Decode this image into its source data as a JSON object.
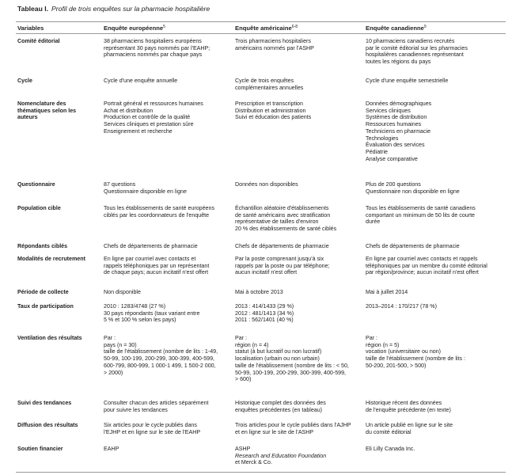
{
  "title": {
    "label": "Tableau I.",
    "text": "Profil de trois enquêtes sur la pharmacie hospitalière"
  },
  "table": {
    "header": [
      {
        "text": "Variables"
      },
      {
        "text": "Enquête européenne",
        "note": "5"
      },
      {
        "text": "Enquête américaine",
        "note": "6-8"
      },
      {
        "text": "Enquête canadienne",
        "note": "9"
      }
    ],
    "rows": [
      [
        [
          "Comité éditorial"
        ],
        [
          "38 pharmaciens hospitaliers européens",
          "représentant 30 pays nommés par l'EAHP;",
          "pharmaciens nommés par chaque pays"
        ],
        [
          "Trois pharmaciens hospitaliers",
          "américains nommés par l'ASHP"
        ],
        [
          "10 pharmaciens canadiens recrutés",
          "par le comité éditorial sur les pharmacies",
          "hospitalières canadiennes représentant",
          "toutes les régions du pays"
        ]
      ],
      [
        [
          "Cycle"
        ],
        [
          "Cycle d'une enquête annuelle"
        ],
        [
          "Cycle de trois enquêtes",
          "complémentaires annuelles"
        ],
        [
          "Cycle d'une enquête semestrielle"
        ]
      ],
      [
        [
          "Nomenclature des",
          "thématiques selon les",
          "auteurs"
        ],
        [
          "Portrait général et ressources humaines",
          "Achat et distribution",
          "Production et contrôle de la qualité",
          "Services cliniques et prestation sûre",
          "Enseignement et recherche"
        ],
        [
          "Prescription et transcription",
          "Distribution et administration",
          "Suivi et éducation des patients"
        ],
        [
          "Données démographiques",
          "Services cliniques",
          "Systèmes de distribution",
          "Ressources humaines",
          "Techniciens en pharmacie",
          "Technologies",
          "Évaluation des services",
          "Pédiatrie",
          "Analyse comparative"
        ]
      ],
      [
        [
          "Questionnaire"
        ],
        [
          "87 questions",
          "Questionnaire disponible en ligne"
        ],
        [
          "Données non disponibles"
        ],
        [
          "Plus de 200 questions",
          "Questionnaire non disponible en ligne"
        ]
      ],
      [
        [
          "Population cible"
        ],
        [
          "Tous les établissements de santé européens",
          "ciblés par les coordonnateurs de l'enquête"
        ],
        [
          "Échantillon aléatoire d'établissements",
          "de santé américains avec stratification",
          "représentative de tailles d'environ",
          "20 % des établissements de santé ciblés"
        ],
        [
          "Tous les établissements de santé canadiens",
          "comportant un minimum de 50 lits de courte",
          "durée"
        ]
      ],
      [
        [
          "Répondants ciblés"
        ],
        [
          "Chefs de départements de pharmacie"
        ],
        [
          "Chefs de départements de pharmacie"
        ],
        [
          "Chefs de départements de pharmacie"
        ]
      ],
      [
        [
          "Modalités de recrutement"
        ],
        [
          "En ligne par courriel avec contacts et",
          "rappels téléphoniques par un représentant",
          "de chaque pays; aucun incitatif n'est offert"
        ],
        [
          "Par la poste comprenant jusqu'à six",
          "rappels par la poste ou par téléphone;",
          "aucun incitatif n'est offert"
        ],
        [
          "En ligne par courriel avec contacts et rappels",
          "téléphoniques par un membre du comité éditorial",
          "par région/province; aucun incitatif n'est offert"
        ]
      ],
      [
        [
          "Période de collecte"
        ],
        [
          "Non disponible"
        ],
        [
          "Mai à octobre 2013"
        ],
        [
          "Mai à juillet 2014"
        ]
      ],
      [
        [
          "Taux de participation"
        ],
        [
          "2010 : 1283/4748 (27 %)",
          "30 pays répondants (taux variant entre",
          "5 % et 100 % selon les pays)"
        ],
        [
          "2013 : 414/1433 (29 %)",
          "2012 : 481/1413 (34 %)",
          "2011 : 562/1401 (40 %)"
        ],
        [
          "2013–2014 : 170/217 (78 %)"
        ]
      ],
      [
        [
          "Ventilation des résultats"
        ],
        [
          "Par :",
          "pays (n = 30)",
          "taille de l'établissement (nombre de lits : 1-49,",
          "50-99, 100-199, 200-299, 300-399, 400-599,",
          "600-799, 800-999, 1 000-1 499, 1 500-2 000,",
          "> 2000)"
        ],
        [
          "Par :",
          "région (n = 4)",
          "statut (à but lucratif ou non lucratif)",
          "localisation (urbain ou non urbain)",
          "taille de l'établissement (nombre de lits : < 50,",
          "50-99, 100-199, 200-299, 300-399, 400-599,",
          "> 600)"
        ],
        [
          "Par :",
          "région (n = 5)",
          "vocation (universitaire ou non)",
          "taille de l'établissement (nombre de lits :",
          "50-200, 201-500, > 500)"
        ]
      ],
      [
        [
          "Suivi des tendances"
        ],
        [
          "Consulter chacun des articles séparément",
          "pour suivre les tendances"
        ],
        [
          "Historique complet des données des",
          "enquêtes précédentes (en tableau)"
        ],
        [
          "Historique récent des données",
          "de l'enquête précédente (en texte)"
        ]
      ],
      [
        [
          "Diffusion des résultats"
        ],
        [
          "Six articles pour le cycle publiés dans",
          "l'EJHP et en ligne sur le site de l'EAHP"
        ],
        [
          "Trois articles pour le cycle publiés dans l'AJHP",
          "et en ligne sur le site de l'ASHP"
        ],
        [
          "Un article publié en ligne sur le site",
          "du comité éditorial"
        ]
      ],
      [
        [
          "Soutien financier"
        ],
        [
          "EAHP"
        ],
        [
          "ASHP",
          {
            "text": "Research and Education Foundation",
            "style": "italic"
          },
          "et Merck & Co."
        ],
        [
          "Eli Lilly Canada Inc."
        ]
      ]
    ]
  }
}
